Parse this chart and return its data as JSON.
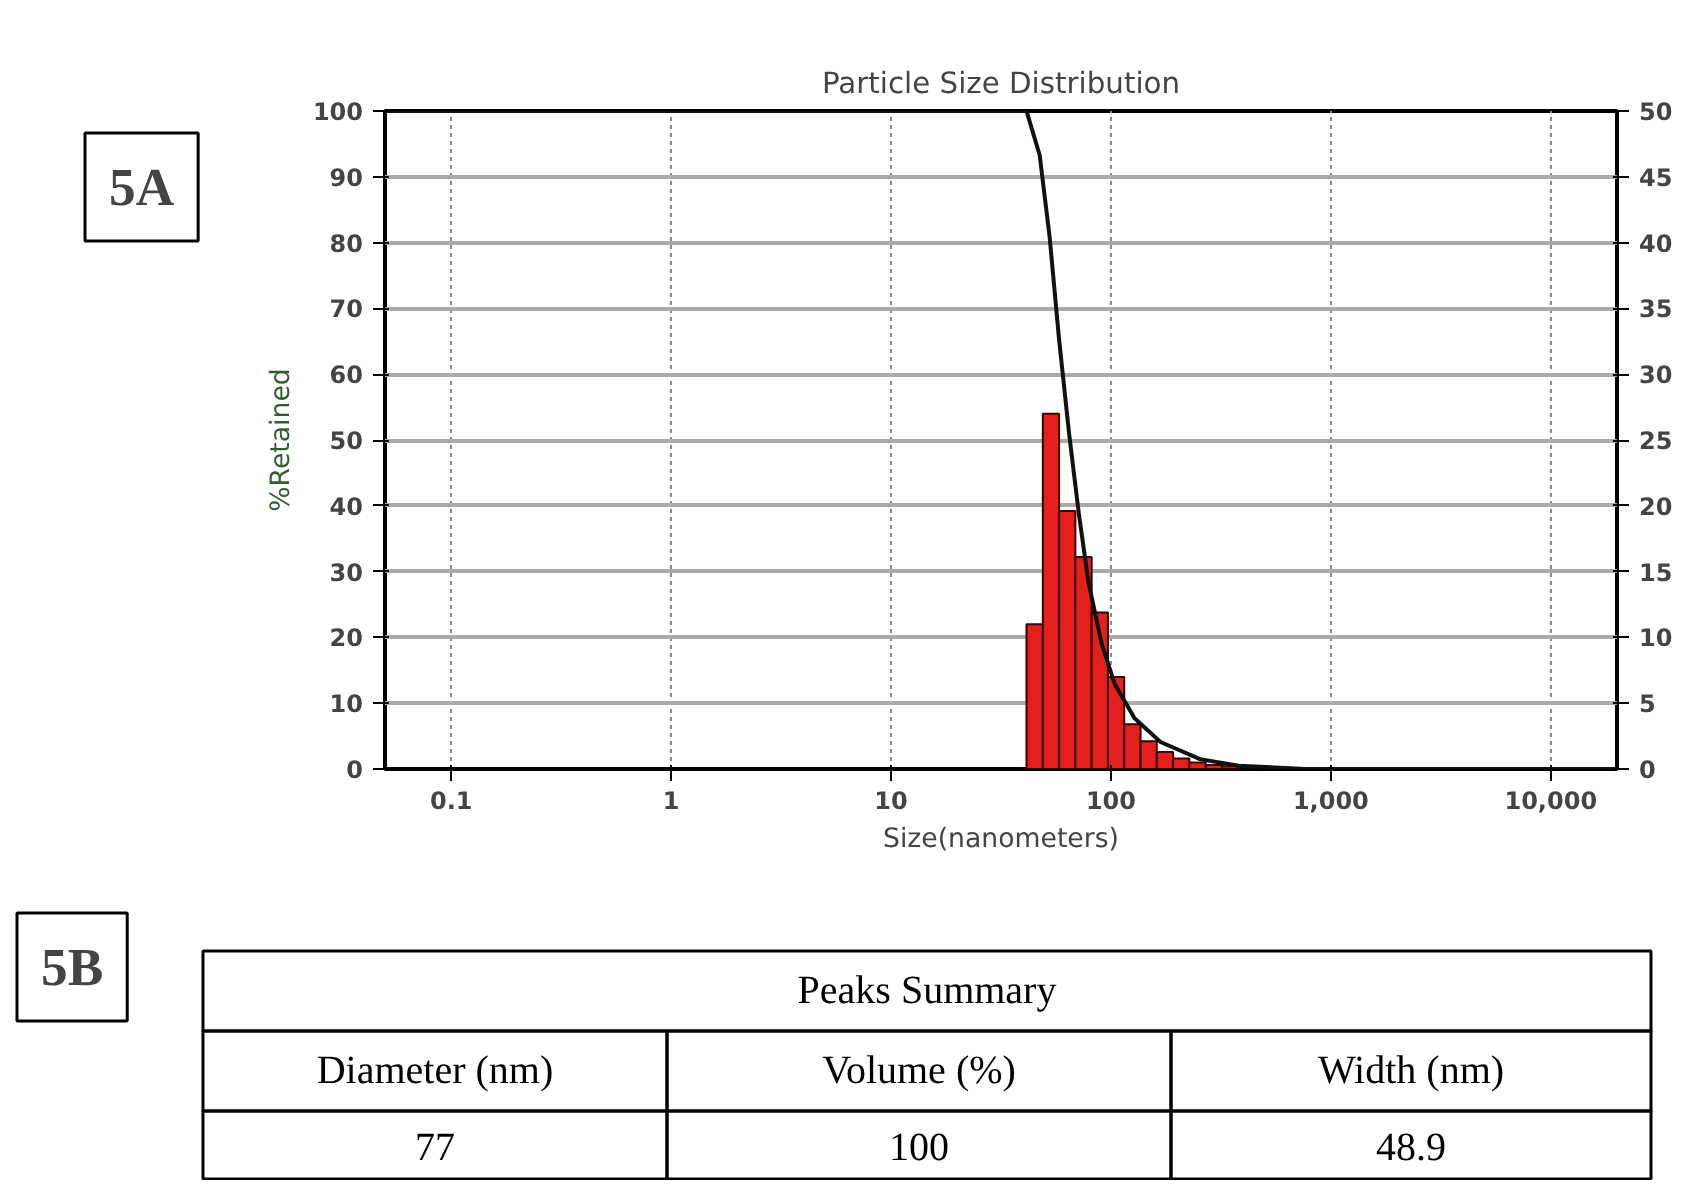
{
  "chart_data": {
    "type": "histogram",
    "title": "Particle Size Distribution",
    "xlabel": "Size(nanometers)",
    "ylabel": "%Retained",
    "log": "x",
    "grid": true,
    "xlim": [
      0.05,
      20000
    ],
    "xticks": [
      0.1,
      1,
      10,
      100,
      {
        "value": 1000,
        "label": "1,000"
      },
      {
        "value": 10000,
        "label": "10,000"
      }
    ],
    "ylim": [
      0,
      100
    ],
    "yticks": [
      0,
      10,
      20,
      30,
      40,
      50,
      60,
      70,
      80,
      90,
      100
    ],
    "y2lim": [
      0,
      50
    ],
    "y2ticks": [
      0,
      5,
      10,
      15,
      20,
      25,
      30,
      35,
      40,
      45,
      50
    ],
    "series": [
      {
        "axis": "y2",
        "color": "#e3201b",
        "bins": [
          41.3,
          49.0,
          58.1,
          68.9,
          81.7,
          96.9,
          114.9,
          136.3,
          161.6,
          191.7,
          227.3,
          269.6,
          319.7,
          379.2
        ],
        "values": [
          11.0,
          27.0,
          19.6,
          16.1,
          11.9,
          7.0,
          3.4,
          2.1,
          1.3,
          0.8,
          0.5,
          0.3,
          0.2
        ]
      },
      {
        "type": "line",
        "color": "#111111",
        "x": [
          0.05,
          41.3,
          47.4,
          52.6,
          58,
          64.5,
          71.5,
          79,
          90.8,
          104,
          128,
          168,
          254,
          381,
          763,
          20000
        ],
        "values": [
          100,
          100,
          93.3,
          80.9,
          65.5,
          51,
          38.7,
          28.4,
          19,
          12.9,
          7.7,
          4.1,
          1.5,
          0.5,
          0,
          0
        ]
      }
    ],
    "annotations": [
      "5A",
      "5B",
      "Peaks Summary",
      "Diameter (nm)",
      "Volume (%)",
      "Width (nm)",
      "77",
      "100",
      "48.9"
    ]
  }
}
